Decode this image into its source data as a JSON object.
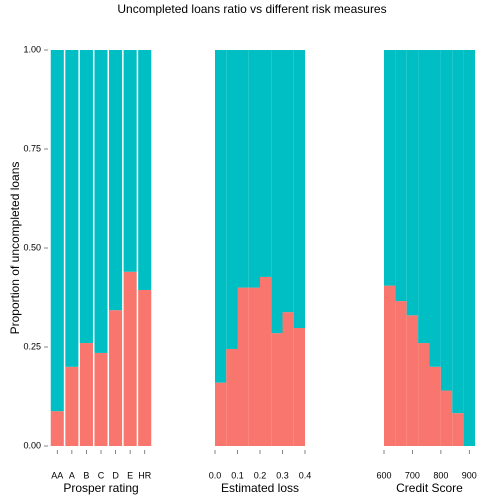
{
  "title": "Uncompleted loans ratio vs different risk measures",
  "chart_data": [
    {
      "type": "bar",
      "ylabel": "Proportion of uncompleted loans",
      "xlabel": "Prosper rating",
      "categories": [
        "AA",
        "A",
        "B",
        "C",
        "D",
        "E",
        "HR"
      ],
      "series": [
        {
          "color": "#F8766D",
          "values": [
            0.088,
            0.2,
            0.26,
            0.235,
            0.343,
            0.44,
            0.394
          ]
        },
        {
          "color": "#00BFC4",
          "values": [
            0.912,
            0.8,
            0.74,
            0.765,
            0.657,
            0.56,
            0.606
          ]
        }
      ],
      "ylim": [
        0,
        1
      ],
      "yticks": [
        {
          "value": 0,
          "label": "0.00"
        },
        {
          "value": 0.25,
          "label": "0.25"
        },
        {
          "value": 0.5,
          "label": "0.50"
        },
        {
          "value": 0.75,
          "label": "0.75"
        },
        {
          "value": 1,
          "label": "1.00"
        }
      ]
    },
    {
      "type": "histogram",
      "xlabel": "Estimated loss",
      "bins": [
        0,
        0.05,
        0.1,
        0.15,
        0.2,
        0.25,
        0.3,
        0.35,
        0.4
      ],
      "series": [
        {
          "color": "#F8766D",
          "values": [
            0.16,
            0.245,
            0.4,
            0.4,
            0.427,
            0.285,
            0.338,
            0.298
          ]
        },
        {
          "color": "#00BFC4",
          "values": [
            0.84,
            0.755,
            0.6,
            0.6,
            0.573,
            0.715,
            0.662,
            0.702
          ]
        }
      ],
      "xlim": [
        0,
        0.4
      ],
      "ylim": [
        0,
        1
      ],
      "xticks": [
        {
          "value": 0,
          "label": "0.0"
        },
        0.1,
        0.2,
        0.3,
        0.4
      ]
    },
    {
      "type": "histogram",
      "xlabel": "Credit Score",
      "bins": [
        600,
        640,
        680,
        720,
        760,
        800,
        840,
        880,
        920
      ],
      "series": [
        {
          "color": "#F8766D",
          "values": [
            0.405,
            0.366,
            0.33,
            0.26,
            0.2,
            0.14,
            0.083,
            0
          ]
        },
        {
          "color": "#00BFC4",
          "values": [
            0.595,
            0.634,
            0.67,
            0.74,
            0.8,
            0.86,
            0.917,
            1
          ]
        }
      ],
      "xlim": [
        600,
        920
      ],
      "ylim": [
        0,
        1
      ],
      "xticks": [
        600,
        700,
        800,
        900
      ]
    }
  ]
}
